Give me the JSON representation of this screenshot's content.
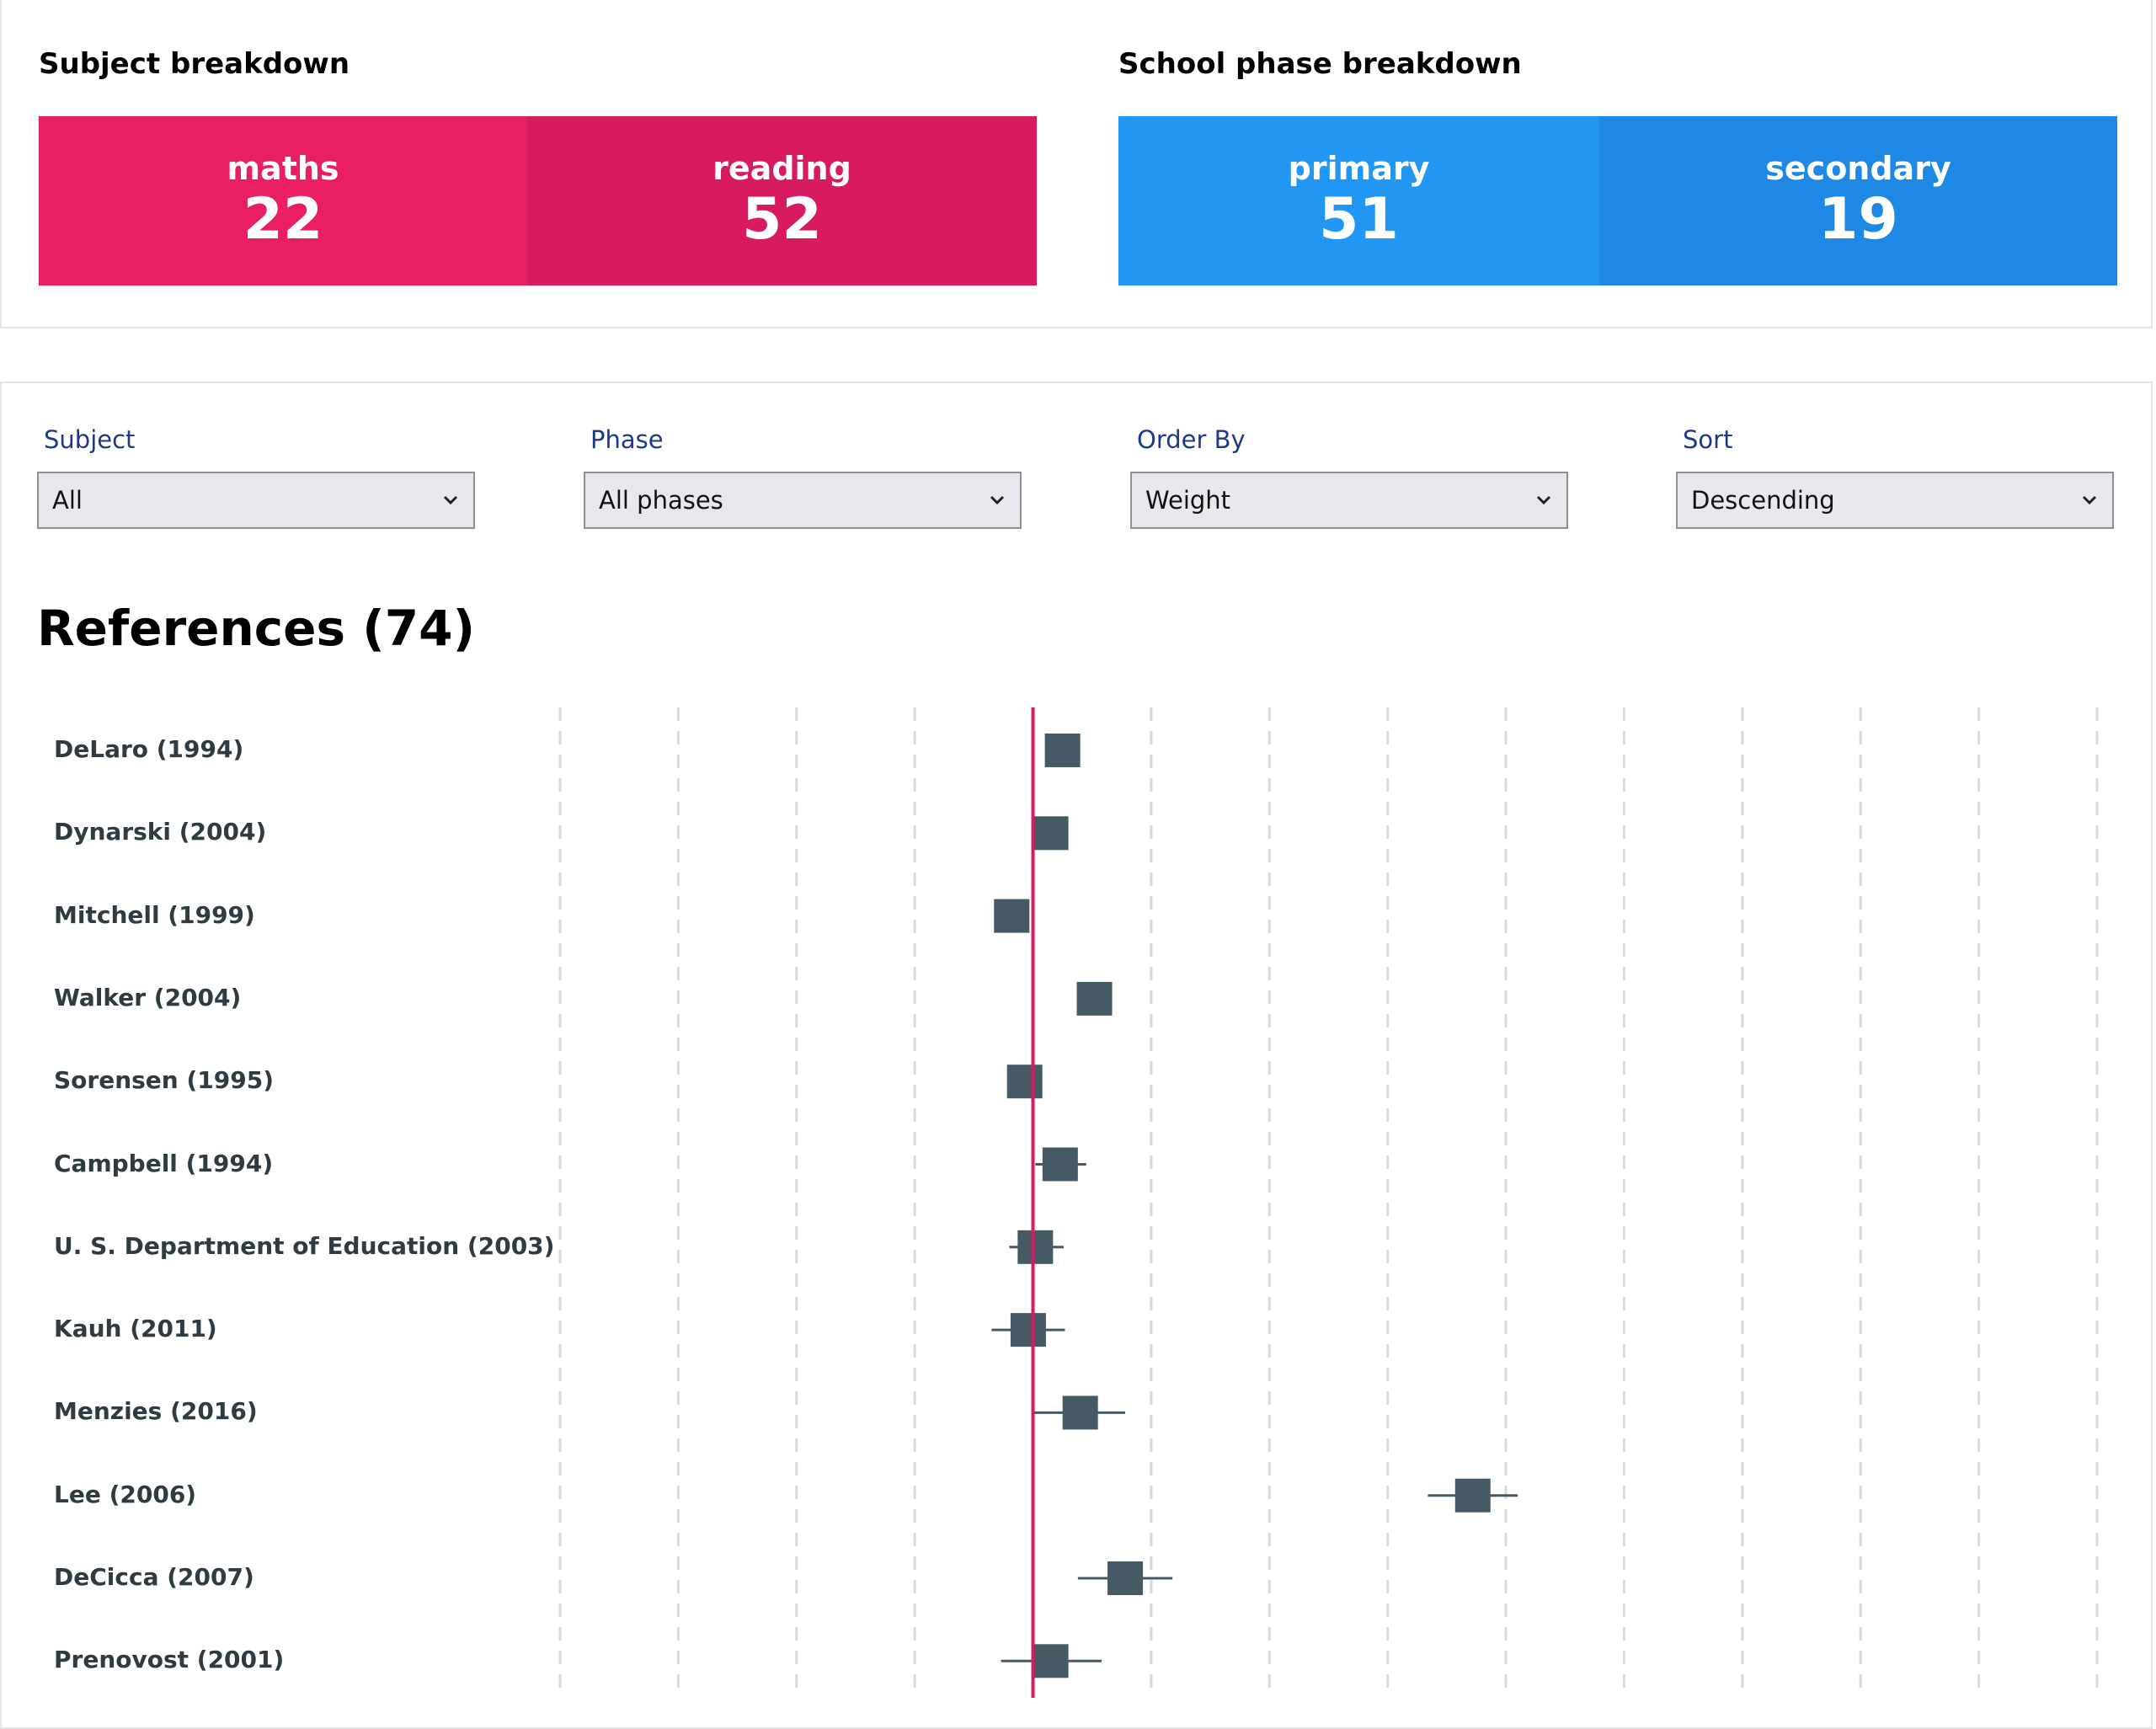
{
  "subject_breakdown": {
    "title": "Subject breakdown",
    "segments": [
      {
        "label": "maths",
        "value": "22",
        "color": "#ea1f63"
      },
      {
        "label": "reading",
        "value": "52",
        "color": "#d81b60"
      }
    ]
  },
  "phase_breakdown": {
    "title": "School phase breakdown",
    "segments": [
      {
        "label": "primary",
        "value": "51",
        "color": "#2196f3"
      },
      {
        "label": "secondary",
        "value": "19",
        "color": "#1e88e5"
      }
    ]
  },
  "filters": [
    {
      "label": "Subject",
      "value": "All"
    },
    {
      "label": "Phase",
      "value": "All phases"
    },
    {
      "label": "Order By",
      "value": "Weight"
    },
    {
      "label": "Sort",
      "value": "Descending"
    }
  ],
  "references": {
    "title": "References (74)",
    "accent_color": "#d81b60",
    "marker_color": "#455a64"
  },
  "chart_data": {
    "type": "scatter",
    "grid": true,
    "reference_line": 0,
    "xlim": [
      -4,
      9
    ],
    "studies": [
      {
        "label": "DeLaro (1994)",
        "estimate": 0.25,
        "ci_low": 0.2,
        "ci_high": 0.3
      },
      {
        "label": "Dynarski (2004)",
        "estimate": 0.15,
        "ci_low": 0.0,
        "ci_high": 0.25
      },
      {
        "label": "Mitchell (1999)",
        "estimate": -0.18,
        "ci_low": -0.25,
        "ci_high": -0.1
      },
      {
        "label": "Walker (2004)",
        "estimate": 0.52,
        "ci_low": 0.4,
        "ci_high": 0.62
      },
      {
        "label": "Sorensen (1995)",
        "estimate": -0.07,
        "ci_low": -0.2,
        "ci_high": 0.05
      },
      {
        "label": "Campbell (1994)",
        "estimate": 0.23,
        "ci_low": 0.02,
        "ci_high": 0.45
      },
      {
        "label": "U. S. Department of Education (2003)",
        "estimate": 0.02,
        "ci_low": -0.2,
        "ci_high": 0.26
      },
      {
        "label": "Kauh (2011)",
        "estimate": -0.04,
        "ci_low": -0.35,
        "ci_high": 0.27
      },
      {
        "label": "Menzies (2016)",
        "estimate": 0.4,
        "ci_low": 0.0,
        "ci_high": 0.78
      },
      {
        "label": "Lee (2006)",
        "estimate": 3.72,
        "ci_low": 3.34,
        "ci_high": 4.1
      },
      {
        "label": "DeCicca (2007)",
        "estimate": 0.78,
        "ci_low": 0.38,
        "ci_high": 1.18
      },
      {
        "label": "Prenovost (2001)",
        "estimate": 0.15,
        "ci_low": -0.27,
        "ci_high": 0.58
      }
    ]
  }
}
